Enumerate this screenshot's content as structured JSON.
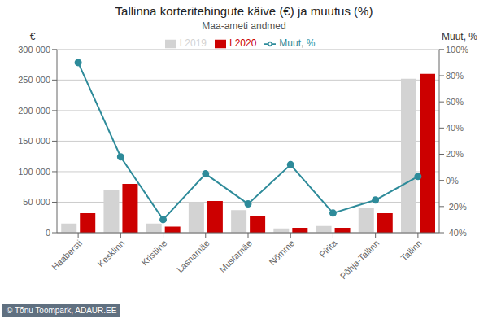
{
  "chart_data": {
    "type": "bar",
    "title": "Tallinna korteritehingute käive (€) ja muutus (%)",
    "subtitle": "Maa-ameti andmed",
    "ylabel": "€",
    "y2label": "Muut, %",
    "categories": [
      "Haabersti",
      "Kesklinn",
      "Kristiine",
      "Lasnamäe",
      "Mustamäe",
      "Nõmme",
      "Pirita",
      "Põhja-Tallinn",
      "Tallinn"
    ],
    "series": [
      {
        "name": "I 2019",
        "type": "bar",
        "color": "#d3d3d3",
        "values": [
          15000,
          70000,
          15000,
          50000,
          37000,
          7000,
          11000,
          40000,
          252000
        ]
      },
      {
        "name": "I 2020",
        "type": "bar",
        "color": "#cc0000",
        "values": [
          32000,
          80000,
          10000,
          52000,
          28000,
          8000,
          8000,
          32000,
          260000
        ]
      },
      {
        "name": "Muut, %",
        "type": "line",
        "axis": "y2",
        "marker": "circle",
        "color": "#2e8b9a",
        "values": [
          90,
          18,
          -30,
          5,
          -18,
          12,
          -25,
          -15,
          3
        ]
      }
    ],
    "ylim": [
      0,
      300000
    ],
    "yticks": [
      0,
      {
        "value": 50000,
        "label": "50 000"
      },
      {
        "value": 100000,
        "label": "100 000"
      },
      {
        "value": 150000,
        "label": "150 000"
      },
      {
        "value": 200000,
        "label": "200 000"
      },
      {
        "value": 250000,
        "label": "250 000"
      },
      {
        "value": 300000,
        "label": "300 000"
      }
    ],
    "y2lim": [
      -40,
      100
    ],
    "y2ticks": [
      {
        "value": -40,
        "label": "-40%"
      },
      {
        "value": -20,
        "label": "-20%"
      },
      {
        "value": 0,
        "label": "0%"
      },
      {
        "value": 20,
        "label": "20%"
      },
      {
        "value": 40,
        "label": "40%"
      },
      {
        "value": 60,
        "label": "60%"
      },
      {
        "value": 80,
        "label": "80%"
      },
      {
        "value": 100,
        "label": "100%"
      }
    ],
    "grid": true,
    "legend": "top",
    "annotations": [
      "© Tõnu Toompark, ADAUR.EE"
    ]
  }
}
